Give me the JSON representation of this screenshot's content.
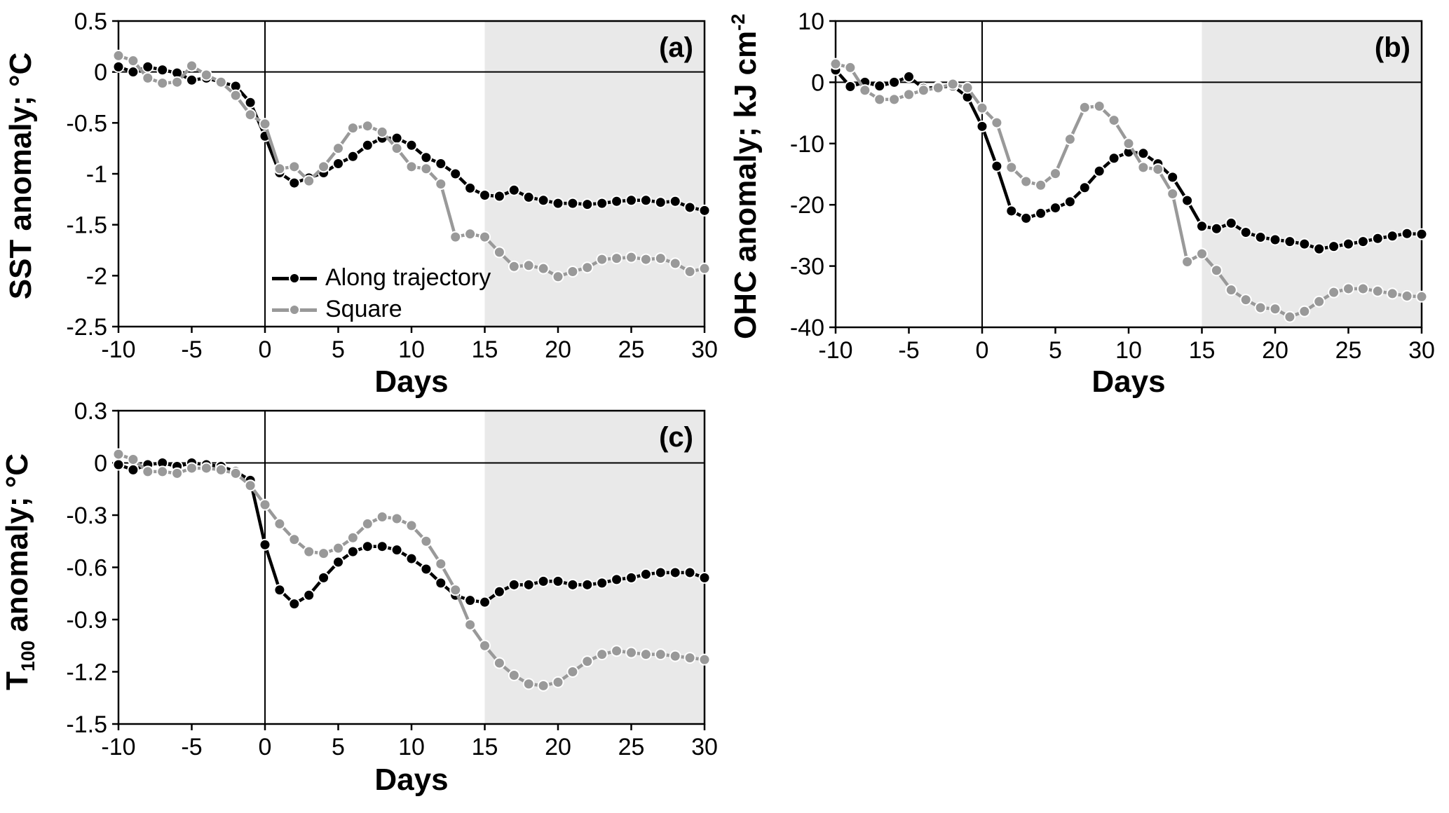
{
  "figure": {
    "colors": {
      "black_series": "#000000",
      "gray_series": "#999999",
      "shading": "#e9e9e9",
      "axis": "#000000",
      "background": "#ffffff"
    },
    "legend": {
      "position": "inside panel (a), lower left area",
      "items": [
        {
          "label": "Along trajectory",
          "color": "#000000",
          "marker": "circle"
        },
        {
          "label": "Square",
          "color": "#999999",
          "marker": "circle"
        }
      ]
    }
  },
  "chart_data": [
    {
      "type": "line",
      "panel_label": "(a)",
      "title": "",
      "xlabel": "Days",
      "ylabel": "SST anomaly; °C",
      "ylabel_parts": {
        "pre": "SST anomaly; °C"
      },
      "xlim": [
        -10,
        30
      ],
      "ylim": [
        -2.5,
        0.5
      ],
      "x_ticks": [
        -10,
        -5,
        0,
        5,
        10,
        15,
        20,
        25,
        30
      ],
      "x_tick_labels": [
        "-10",
        "-5",
        "0",
        "5",
        "10",
        "15",
        "20",
        "25",
        "30"
      ],
      "y_ticks": [
        0.5,
        0,
        -0.5,
        -1,
        -1.5,
        -2,
        -2.5
      ],
      "y_tick_labels": [
        "0.5",
        "0",
        "-0.5",
        "-1",
        "-1.5",
        "-2",
        "-2.5"
      ],
      "grid": false,
      "shaded_region": {
        "x_start": 15,
        "x_end": 30
      },
      "reference_lines": {
        "horizontal_at": 0,
        "vertical_at": 0
      },
      "x": [
        -10,
        -9,
        -8,
        -7,
        -6,
        -5,
        -4,
        -3,
        -2,
        -1,
        0,
        1,
        2,
        3,
        4,
        5,
        6,
        7,
        8,
        9,
        10,
        11,
        12,
        13,
        14,
        15,
        16,
        17,
        18,
        19,
        20,
        21,
        22,
        23,
        24,
        25,
        26,
        27,
        28,
        29,
        30
      ],
      "series": [
        {
          "name": "Along trajectory",
          "color": "#000000",
          "values": [
            0.05,
            0.0,
            0.05,
            0.02,
            -0.01,
            -0.08,
            -0.06,
            -0.1,
            -0.14,
            -0.3,
            -0.63,
            -0.99,
            -1.09,
            -1.04,
            -0.99,
            -0.9,
            -0.83,
            -0.72,
            -0.65,
            -0.65,
            -0.72,
            -0.84,
            -0.9,
            -1.0,
            -1.14,
            -1.21,
            -1.22,
            -1.16,
            -1.23,
            -1.26,
            -1.29,
            -1.29,
            -1.3,
            -1.29,
            -1.27,
            -1.26,
            -1.26,
            -1.28,
            -1.27,
            -1.33,
            -1.36
          ]
        },
        {
          "name": "Square",
          "color": "#999999",
          "values": [
            0.16,
            0.11,
            -0.06,
            -0.11,
            -0.1,
            0.06,
            -0.03,
            -0.1,
            -0.23,
            -0.42,
            -0.51,
            -0.95,
            -0.93,
            -1.07,
            -0.93,
            -0.75,
            -0.55,
            -0.53,
            -0.59,
            -0.75,
            -0.93,
            -0.95,
            -1.1,
            -1.62,
            -1.59,
            -1.62,
            -1.77,
            -1.91,
            -1.9,
            -1.93,
            -2.01,
            -1.96,
            -1.92,
            -1.84,
            -1.83,
            -1.82,
            -1.84,
            -1.83,
            -1.88,
            -1.96,
            -1.93
          ]
        }
      ]
    },
    {
      "type": "line",
      "panel_label": "(b)",
      "title": "",
      "xlabel": "Days",
      "ylabel": "OHC anomaly; kJ cm-2",
      "ylabel_parts": {
        "pre": "OHC anomaly; kJ cm",
        "sup": "-2"
      },
      "xlim": [
        -10,
        30
      ],
      "ylim": [
        -40,
        10
      ],
      "x_ticks": [
        -10,
        -5,
        0,
        5,
        10,
        15,
        20,
        25,
        30
      ],
      "x_tick_labels": [
        "-10",
        "-5",
        "0",
        "5",
        "10",
        "15",
        "20",
        "25",
        "30"
      ],
      "y_ticks": [
        10,
        0,
        -10,
        -20,
        -30,
        -40
      ],
      "y_tick_labels": [
        "10",
        "0",
        "-10",
        "-20",
        "-30",
        "-40"
      ],
      "grid": false,
      "shaded_region": {
        "x_start": 15,
        "x_end": 30
      },
      "reference_lines": {
        "horizontal_at": 0,
        "vertical_at": 0
      },
      "x": [
        -10,
        -9,
        -8,
        -7,
        -6,
        -5,
        -4,
        -3,
        -2,
        -1,
        0,
        1,
        2,
        3,
        4,
        5,
        6,
        7,
        8,
        9,
        10,
        11,
        12,
        13,
        14,
        15,
        16,
        17,
        18,
        19,
        20,
        21,
        22,
        23,
        24,
        25,
        26,
        27,
        28,
        29,
        30
      ],
      "series": [
        {
          "name": "Along trajectory",
          "color": "#000000",
          "values": [
            2.0,
            -0.7,
            0.0,
            -0.6,
            0.0,
            0.9,
            -1.0,
            -0.8,
            -0.6,
            -2.4,
            -7.2,
            -13.7,
            -21.0,
            -22.2,
            -21.4,
            -20.5,
            -19.5,
            -17.2,
            -14.5,
            -12.4,
            -11.4,
            -11.6,
            -13.3,
            -15.5,
            -19.3,
            -23.5,
            -23.9,
            -23.0,
            -24.5,
            -25.3,
            -25.7,
            -26.0,
            -26.4,
            -27.2,
            -26.8,
            -26.4,
            -26.0,
            -25.5,
            -25.1,
            -24.7,
            -24.8
          ]
        },
        {
          "name": "Square",
          "color": "#999999",
          "values": [
            3.0,
            2.4,
            -1.3,
            -2.8,
            -2.8,
            -2.0,
            -1.3,
            -0.9,
            -0.3,
            -0.9,
            -4.2,
            -6.6,
            -13.9,
            -16.2,
            -16.8,
            -14.9,
            -9.3,
            -4.1,
            -3.9,
            -6.2,
            -10.0,
            -13.9,
            -14.2,
            -18.2,
            -29.3,
            -28.0,
            -30.7,
            -33.9,
            -35.5,
            -36.8,
            -37.0,
            -38.3,
            -37.4,
            -35.8,
            -34.3,
            -33.7,
            -33.7,
            -34.1,
            -34.5,
            -34.9,
            -35.0
          ]
        }
      ]
    },
    {
      "type": "line",
      "panel_label": "(c)",
      "title": "",
      "xlabel": "Days",
      "ylabel": "T100 anomaly; °C",
      "ylabel_parts": {
        "pre": "T",
        "sub": "100",
        "post": " anomaly; °C"
      },
      "xlim": [
        -10,
        30
      ],
      "ylim": [
        -1.5,
        0.3
      ],
      "x_ticks": [
        -10,
        -5,
        0,
        5,
        10,
        15,
        20,
        25,
        30
      ],
      "x_tick_labels": [
        "-10",
        "-5",
        "0",
        "5",
        "10",
        "15",
        "20",
        "25",
        "30"
      ],
      "y_ticks": [
        0.3,
        0,
        -0.3,
        -0.6,
        -0.9,
        -1.2,
        -1.5
      ],
      "y_tick_labels": [
        "0.3",
        "0",
        "-0.3",
        "-0.6",
        "-0.9",
        "-1.2",
        "-1.5"
      ],
      "grid": false,
      "shaded_region": {
        "x_start": 15,
        "x_end": 30
      },
      "reference_lines": {
        "horizontal_at": 0,
        "vertical_at": 0
      },
      "x": [
        -10,
        -9,
        -8,
        -7,
        -6,
        -5,
        -4,
        -3,
        -2,
        -1,
        0,
        1,
        2,
        3,
        4,
        5,
        6,
        7,
        8,
        9,
        10,
        11,
        12,
        13,
        14,
        15,
        16,
        17,
        18,
        19,
        20,
        21,
        22,
        23,
        24,
        25,
        26,
        27,
        28,
        29,
        30
      ],
      "series": [
        {
          "name": "Along trajectory",
          "color": "#000000",
          "values": [
            -0.01,
            -0.04,
            -0.01,
            0.0,
            -0.02,
            0.0,
            -0.01,
            -0.02,
            -0.05,
            -0.1,
            -0.47,
            -0.73,
            -0.81,
            -0.76,
            -0.66,
            -0.57,
            -0.51,
            -0.48,
            -0.48,
            -0.5,
            -0.55,
            -0.61,
            -0.69,
            -0.76,
            -0.79,
            -0.8,
            -0.74,
            -0.7,
            -0.7,
            -0.68,
            -0.68,
            -0.7,
            -0.7,
            -0.69,
            -0.67,
            -0.66,
            -0.64,
            -0.63,
            -0.63,
            -0.63,
            -0.66
          ]
        },
        {
          "name": "Square",
          "color": "#999999",
          "values": [
            0.05,
            0.02,
            -0.05,
            -0.05,
            -0.06,
            -0.03,
            -0.03,
            -0.04,
            -0.06,
            -0.13,
            -0.24,
            -0.35,
            -0.44,
            -0.51,
            -0.52,
            -0.49,
            -0.43,
            -0.35,
            -0.31,
            -0.32,
            -0.36,
            -0.45,
            -0.58,
            -0.73,
            -0.93,
            -1.05,
            -1.15,
            -1.22,
            -1.27,
            -1.28,
            -1.26,
            -1.2,
            -1.14,
            -1.1,
            -1.08,
            -1.09,
            -1.1,
            -1.1,
            -1.11,
            -1.12,
            -1.13
          ]
        }
      ]
    }
  ]
}
